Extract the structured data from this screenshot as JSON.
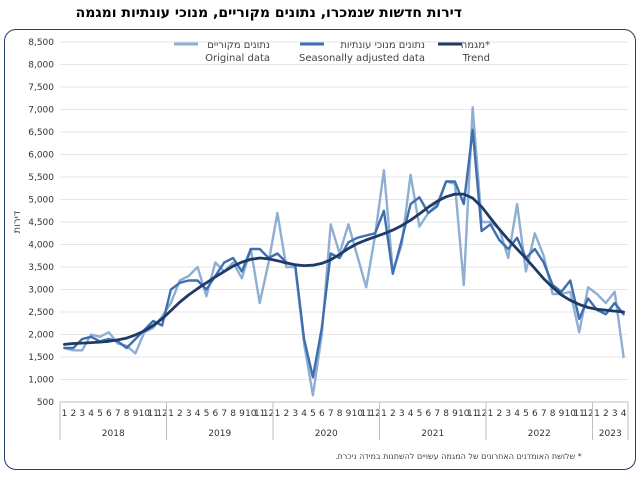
{
  "title": "דירות חדשות שנמכרו, נתונים מקוריים, מנוכי עונתיות ומגמה",
  "footnote": "* שלושת האומדנים האחרונים של המגמה עשויים להשתנות במידה ניכרת.",
  "colors": {
    "original": "#8eaed3",
    "seasonal": "#3f6fae",
    "trend": "#1f3a66",
    "frame": "#233e6a"
  },
  "chart_data": {
    "type": "line",
    "ylabel": "דירות",
    "ylim": [
      500,
      8500
    ],
    "yticks": [
      "500",
      "1,000",
      "1,500",
      "2,000",
      "2,500",
      "3,000",
      "3,500",
      "4,000",
      "4,500",
      "5,000",
      "5,500",
      "6,000",
      "6,500",
      "7,000",
      "7,500",
      "8,000",
      "8,500"
    ],
    "month_labels": [
      "1",
      "2",
      "3",
      "4",
      "5",
      "6",
      "7",
      "8",
      "9",
      "10",
      "11",
      "12",
      "1",
      "2",
      "3",
      "4",
      "5",
      "6",
      "7",
      "8",
      "9",
      "10",
      "11",
      "12",
      "1",
      "2",
      "3",
      "4",
      "5",
      "6",
      "7",
      "8",
      "9",
      "10",
      "11",
      "12",
      "1",
      "2",
      "3",
      "4",
      "5",
      "6",
      "7",
      "8",
      "9",
      "10",
      "11",
      "12",
      "1",
      "2",
      "3",
      "4",
      "5",
      "6",
      "7",
      "8",
      "9",
      "10",
      "11",
      "12",
      "1",
      "2",
      "3",
      "4"
    ],
    "years": [
      {
        "label": "2018",
        "months": 12
      },
      {
        "label": "2019",
        "months": 12
      },
      {
        "label": "2020",
        "months": 12
      },
      {
        "label": "2021",
        "months": 12
      },
      {
        "label": "2022",
        "months": 12
      },
      {
        "label": "2023",
        "months": 4
      }
    ],
    "legend": [
      {
        "key": "original",
        "he": "נתונים מקוריים",
        "en": "Original data"
      },
      {
        "key": "seasonal",
        "he": "נתונים מנוכי עונתיות",
        "en": "Seasonally adjusted data"
      },
      {
        "key": "trend",
        "he": "מגמה*",
        "en": "Trend"
      }
    ],
    "series": [
      {
        "key": "original",
        "values": [
          1700,
          1650,
          1650,
          2000,
          1950,
          2050,
          1800,
          1750,
          1580,
          2050,
          2150,
          2400,
          2700,
          3200,
          3300,
          3500,
          2850,
          3600,
          3400,
          3600,
          3250,
          3900,
          2700,
          3600,
          4700,
          3500,
          3500,
          1800,
          650,
          2000,
          4450,
          3800,
          4450,
          3750,
          3050,
          4200,
          5650,
          3400,
          4000,
          5550,
          4400,
          4700,
          4900,
          5400,
          5350,
          3100,
          7050,
          4500,
          4500,
          4350,
          3700,
          4900,
          3400,
          4250,
          3750,
          2900,
          2900,
          2950,
          2050,
          3050,
          2900,
          2700,
          2950,
          1500
        ]
      },
      {
        "key": "seasonal",
        "values": [
          1700,
          1700,
          1900,
          1950,
          1850,
          1900,
          1850,
          1700,
          1900,
          2100,
          2300,
          2200,
          3000,
          3150,
          3200,
          3200,
          3000,
          3300,
          3600,
          3700,
          3400,
          3900,
          3900,
          3700,
          3800,
          3600,
          3550,
          1900,
          1050,
          2150,
          3800,
          3700,
          4050,
          4150,
          4200,
          4250,
          4750,
          3350,
          4100,
          4900,
          5050,
          4700,
          4850,
          5400,
          5400,
          4900,
          6550,
          4300,
          4450,
          4100,
          3900,
          4150,
          3700,
          3900,
          3600,
          3100,
          2950,
          3200,
          2350,
          2800,
          2550,
          2450,
          2700,
          2450
        ]
      },
      {
        "key": "trend",
        "values": [
          1780,
          1800,
          1810,
          1820,
          1830,
          1850,
          1880,
          1920,
          1990,
          2080,
          2200,
          2350,
          2530,
          2720,
          2880,
          3020,
          3150,
          3280,
          3400,
          3520,
          3610,
          3670,
          3700,
          3680,
          3640,
          3590,
          3550,
          3530,
          3540,
          3580,
          3660,
          3780,
          3910,
          4020,
          4100,
          4170,
          4240,
          4320,
          4420,
          4540,
          4680,
          4830,
          4960,
          5060,
          5120,
          5120,
          5030,
          4840,
          4590,
          4340,
          4110,
          3900,
          3690,
          3470,
          3240,
          3050,
          2880,
          2760,
          2670,
          2600,
          2560,
          2540,
          2520,
          2500
        ]
      }
    ]
  }
}
